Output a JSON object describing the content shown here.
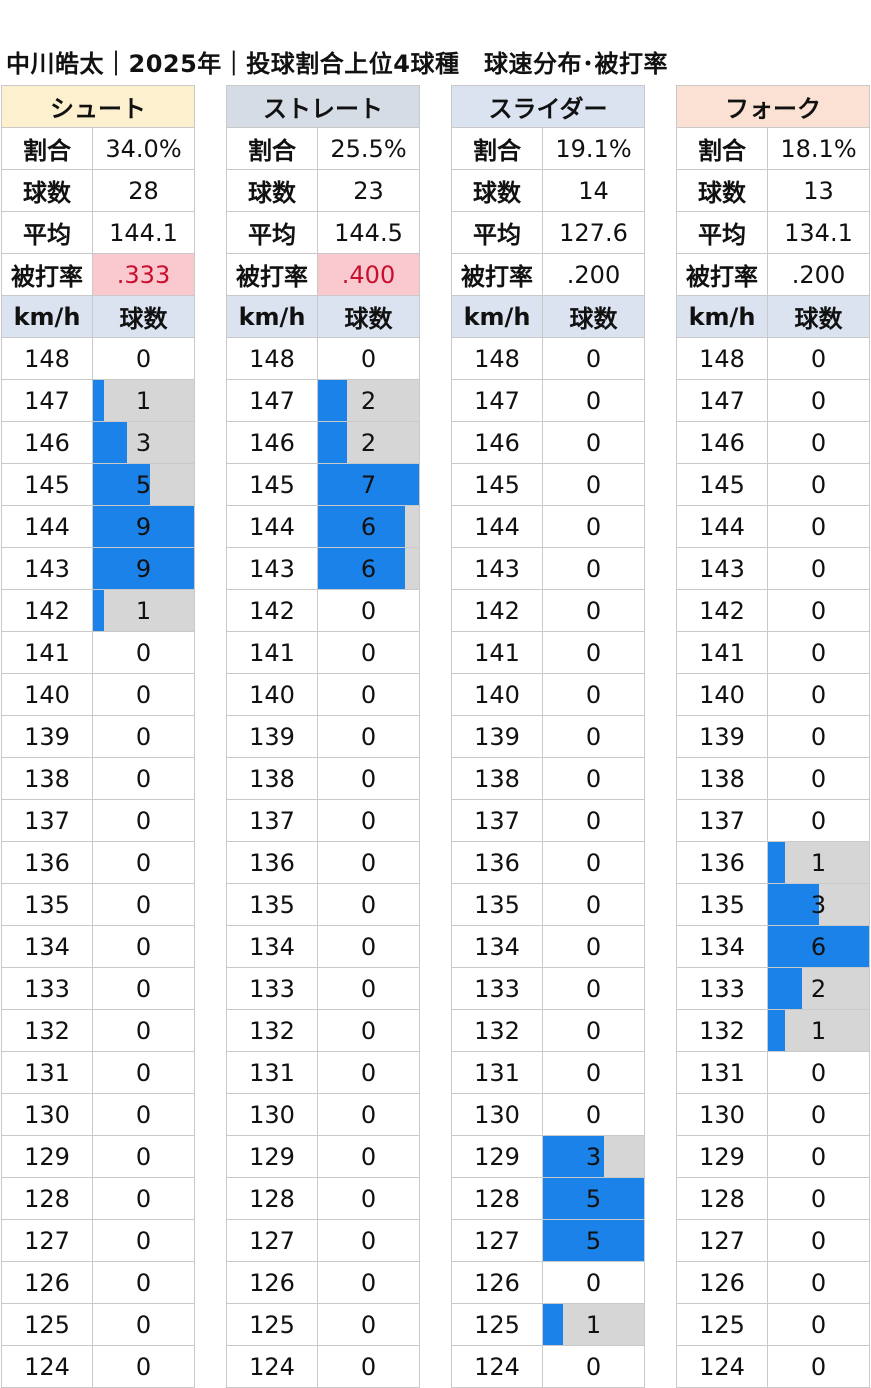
{
  "title": "中川皓太｜2025年｜投球割合上位4球種　球速分布･被打率",
  "labels": {
    "ratio": "割合",
    "count": "球数",
    "avg": "平均",
    "ba": "被打率",
    "kmh": "km/h",
    "pitches": "球数"
  },
  "colors": {
    "bar": "#1a82e8",
    "track": "#d6d6d6",
    "highlight_bg": "#f9c9cf",
    "highlight_text": "#c8102e",
    "colhdr_bg": "#dbe3f1"
  },
  "chart_data": {
    "type": "table",
    "speeds": [
      148,
      147,
      146,
      145,
      144,
      143,
      142,
      141,
      140,
      139,
      138,
      137,
      136,
      135,
      134,
      133,
      132,
      131,
      130,
      129,
      128,
      127,
      126,
      125,
      124
    ],
    "pitch_types": [
      {
        "name": "シュート",
        "header_bg": "#fdf0cf",
        "ratio": "34.0%",
        "count": "28",
        "avg": "144.1",
        "ba": ".333",
        "ba_highlight": true,
        "counts": [
          0,
          1,
          3,
          5,
          9,
          9,
          1,
          0,
          0,
          0,
          0,
          0,
          0,
          0,
          0,
          0,
          0,
          0,
          0,
          0,
          0,
          0,
          0,
          0,
          0
        ]
      },
      {
        "name": "ストレート",
        "header_bg": "#d6dce5",
        "ratio": "25.5%",
        "count": "23",
        "avg": "144.5",
        "ba": ".400",
        "ba_highlight": true,
        "counts": [
          0,
          2,
          2,
          7,
          6,
          6,
          0,
          0,
          0,
          0,
          0,
          0,
          0,
          0,
          0,
          0,
          0,
          0,
          0,
          0,
          0,
          0,
          0,
          0,
          0
        ]
      },
      {
        "name": "スライダー",
        "header_bg": "#dbe3f1",
        "ratio": "19.1%",
        "count": "14",
        "avg": "127.6",
        "ba": ".200",
        "ba_highlight": false,
        "counts": [
          0,
          0,
          0,
          0,
          0,
          0,
          0,
          0,
          0,
          0,
          0,
          0,
          0,
          0,
          0,
          0,
          0,
          0,
          0,
          3,
          5,
          5,
          0,
          1,
          0
        ]
      },
      {
        "name": "フォーク",
        "header_bg": "#fbe1d3",
        "ratio": "18.1%",
        "count": "13",
        "avg": "134.1",
        "ba": ".200",
        "ba_highlight": false,
        "counts": [
          0,
          0,
          0,
          0,
          0,
          0,
          0,
          0,
          0,
          0,
          0,
          0,
          1,
          3,
          6,
          2,
          1,
          0,
          0,
          0,
          0,
          0,
          0,
          0,
          0
        ]
      }
    ]
  }
}
